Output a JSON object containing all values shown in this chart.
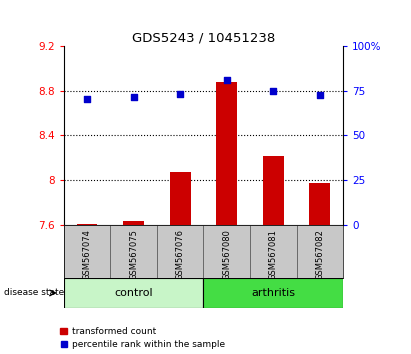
{
  "title": "GDS5243 / 10451238",
  "samples": [
    "GSM567074",
    "GSM567075",
    "GSM567076",
    "GSM567080",
    "GSM567081",
    "GSM567082"
  ],
  "bar_values": [
    7.61,
    7.63,
    8.07,
    8.88,
    8.22,
    7.97
  ],
  "bar_color": "#CC0000",
  "dot_values_left": [
    8.73,
    8.74,
    8.77,
    8.895,
    8.8,
    8.76
  ],
  "dot_color": "#0000CC",
  "ylim_left": [
    7.6,
    9.2
  ],
  "ylim_right": [
    0,
    100
  ],
  "yticks_left": [
    7.6,
    8.0,
    8.4,
    8.8,
    9.2
  ],
  "ytick_labels_left": [
    "7.6",
    "8",
    "8.4",
    "8.8",
    "9.2"
  ],
  "yticks_right": [
    0,
    25,
    50,
    75,
    100
  ],
  "ytick_labels_right": [
    "0",
    "25",
    "50",
    "75",
    "100%"
  ],
  "hlines": [
    8.0,
    8.4,
    8.8
  ],
  "bar_bottom": 7.6,
  "legend_bar_label": "transformed count",
  "legend_dot_label": "percentile rank within the sample",
  "control_bg": "#C8F5C8",
  "arthritis_bg": "#44DD44",
  "label_panel_color": "#C8C8C8",
  "figsize": [
    4.11,
    3.54
  ],
  "dpi": 100
}
